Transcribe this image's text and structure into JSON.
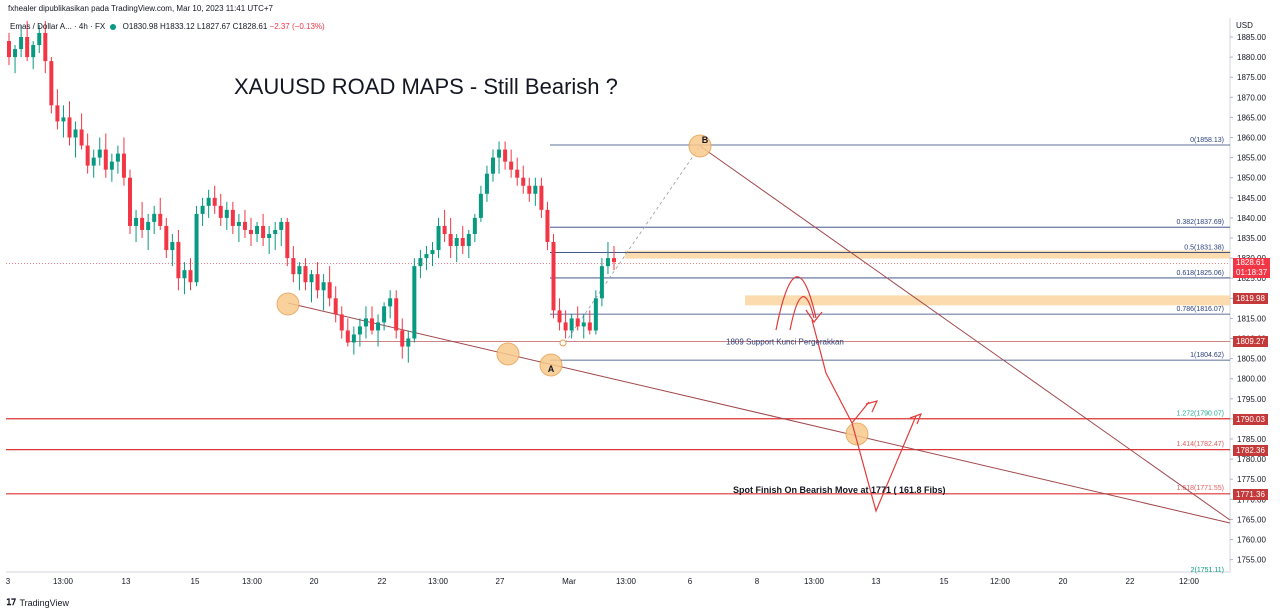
{
  "header": {
    "publisher_line": "fxhealer dipublikasikan pada TradingView.com, Mar 10, 2023 11:41 UTC+7",
    "symbol": "Emas / Dollar A...",
    "timeframe": "4h",
    "exchange": "FX",
    "ohlc": {
      "O": "O1830.98",
      "H": "H1833.12",
      "L": "L1827.67",
      "C": "C1828.61",
      "change": "−2.37 (−0.13%)"
    },
    "title": "XAUUSD ROAD MAPS - Still Bearish ?",
    "currency": "USD"
  },
  "footer": {
    "brand": "TradingView"
  },
  "colors": {
    "up": "#089981",
    "down": "#f23645",
    "fib": "#2a3f7a",
    "trendline": "#a0484b",
    "support_line": "#e06060",
    "zone": "#fbd6a0",
    "circle_fill": "#f9c98c",
    "price_badge": "#f23645",
    "level_badge": "#c43a3a"
  },
  "chart_data": {
    "type": "candlestick",
    "y_axis": {
      "ticks": [
        1885,
        1880,
        1875,
        1870,
        1865,
        1860,
        1855,
        1850,
        1845,
        1840,
        1835,
        1830,
        1825,
        1820,
        1815,
        1810,
        1805,
        1800,
        1795,
        1790,
        1785,
        1780,
        1775,
        1770,
        1765,
        1760,
        1755
      ],
      "tick_labels": [
        "1885.00",
        "1880.00",
        "1875.00",
        "1870.00",
        "1865.00",
        "1860.00",
        "1855.00",
        "1850.00",
        "1845.00",
        "1840.00",
        "1835.00",
        "1830.00",
        "1825.00",
        "1820.00",
        "1815.00",
        "1810.00",
        "1805.00",
        "1800.00",
        "1795.00",
        "1790.00",
        "1785.00",
        "1780.00",
        "1775.00",
        "1770.00",
        "1765.00",
        "1760.00",
        "1755.00"
      ],
      "range": [
        1752,
        1889
      ]
    },
    "x_axis": {
      "tick_labels": [
        "3",
        "13:00",
        "13",
        "15",
        "13:00",
        "20",
        "22",
        "13:00",
        "27",
        "Mar",
        "13:00",
        "6",
        "8",
        "13:00",
        "13",
        "15",
        "12:00",
        "20",
        "22",
        "12:00"
      ]
    },
    "candles": [
      [
        1884,
        1886,
        1878,
        1880
      ],
      [
        1880,
        1883,
        1876,
        1882
      ],
      [
        1882,
        1888,
        1880,
        1885
      ],
      [
        1885,
        1889,
        1879,
        1880
      ],
      [
        1880,
        1884,
        1877,
        1883
      ],
      [
        1883,
        1888,
        1881,
        1886
      ],
      [
        1886,
        1889,
        1876,
        1879
      ],
      [
        1879,
        1880,
        1866,
        1868
      ],
      [
        1868,
        1872,
        1862,
        1864
      ],
      [
        1864,
        1868,
        1860,
        1865
      ],
      [
        1865,
        1869,
        1858,
        1860
      ],
      [
        1860,
        1864,
        1855,
        1862
      ],
      [
        1862,
        1866,
        1857,
        1858
      ],
      [
        1858,
        1861,
        1851,
        1853
      ],
      [
        1853,
        1857,
        1850,
        1855
      ],
      [
        1855,
        1860,
        1853,
        1857
      ],
      [
        1857,
        1861,
        1850,
        1852
      ],
      [
        1852,
        1856,
        1849,
        1854
      ],
      [
        1854,
        1858,
        1851,
        1856
      ],
      [
        1856,
        1860,
        1848,
        1850
      ],
      [
        1850,
        1852,
        1836,
        1838
      ],
      [
        1838,
        1842,
        1834,
        1840
      ],
      [
        1840,
        1844,
        1835,
        1837
      ],
      [
        1837,
        1841,
        1832,
        1839
      ],
      [
        1839,
        1843,
        1836,
        1841
      ],
      [
        1841,
        1845,
        1837,
        1838
      ],
      [
        1838,
        1840,
        1830,
        1832
      ],
      [
        1832,
        1836,
        1828,
        1834
      ],
      [
        1834,
        1837,
        1822,
        1825
      ],
      [
        1825,
        1829,
        1821,
        1827
      ],
      [
        1827,
        1830,
        1822,
        1824
      ],
      [
        1824,
        1843,
        1823,
        1841
      ],
      [
        1841,
        1845,
        1838,
        1843
      ],
      [
        1843,
        1847,
        1840,
        1845
      ],
      [
        1845,
        1848,
        1841,
        1843
      ],
      [
        1843,
        1846,
        1838,
        1840
      ],
      [
        1840,
        1844,
        1837,
        1842
      ],
      [
        1842,
        1844,
        1836,
        1838
      ],
      [
        1838,
        1841,
        1834,
        1839
      ],
      [
        1839,
        1842,
        1835,
        1837
      ],
      [
        1837,
        1840,
        1833,
        1836
      ],
      [
        1836,
        1839,
        1834,
        1838
      ],
      [
        1838,
        1841,
        1833,
        1835
      ],
      [
        1835,
        1838,
        1831,
        1836
      ],
      [
        1836,
        1839,
        1832,
        1837
      ],
      [
        1837,
        1840,
        1833,
        1839
      ],
      [
        1839,
        1840,
        1828,
        1830
      ],
      [
        1830,
        1833,
        1824,
        1826
      ],
      [
        1826,
        1829,
        1822,
        1828
      ],
      [
        1828,
        1830,
        1822,
        1824
      ],
      [
        1824,
        1827,
        1819,
        1826
      ],
      [
        1826,
        1829,
        1820,
        1822
      ],
      [
        1822,
        1826,
        1817,
        1824
      ],
      [
        1824,
        1828,
        1818,
        1820
      ],
      [
        1820,
        1823,
        1814,
        1816
      ],
      [
        1816,
        1818,
        1810,
        1812
      ],
      [
        1812,
        1815,
        1808,
        1809
      ],
      [
        1809,
        1813,
        1806,
        1811
      ],
      [
        1811,
        1815,
        1808,
        1813
      ],
      [
        1813,
        1818,
        1810,
        1815
      ],
      [
        1815,
        1818,
        1811,
        1812
      ],
      [
        1812,
        1816,
        1808,
        1814
      ],
      [
        1814,
        1819,
        1812,
        1818
      ],
      [
        1818,
        1822,
        1815,
        1820
      ],
      [
        1820,
        1822,
        1810,
        1812
      ],
      [
        1812,
        1815,
        1805,
        1808
      ],
      [
        1808,
        1812,
        1804,
        1810
      ],
      [
        1810,
        1830,
        1809,
        1828
      ],
      [
        1828,
        1832,
        1825,
        1830
      ],
      [
        1830,
        1833,
        1827,
        1831
      ],
      [
        1831,
        1834,
        1828,
        1832
      ],
      [
        1832,
        1840,
        1830,
        1838
      ],
      [
        1838,
        1842,
        1834,
        1836
      ],
      [
        1836,
        1840,
        1830,
        1833
      ],
      [
        1833,
        1836,
        1829,
        1835
      ],
      [
        1835,
        1838,
        1831,
        1833
      ],
      [
        1833,
        1837,
        1830,
        1836
      ],
      [
        1836,
        1841,
        1834,
        1840
      ],
      [
        1840,
        1848,
        1839,
        1846
      ],
      [
        1846,
        1853,
        1844,
        1851
      ],
      [
        1851,
        1857,
        1849,
        1855
      ],
      [
        1855,
        1859,
        1851,
        1857
      ],
      [
        1857,
        1859,
        1852,
        1854
      ],
      [
        1854,
        1857,
        1850,
        1852
      ],
      [
        1852,
        1855,
        1848,
        1850
      ],
      [
        1850,
        1853,
        1846,
        1848
      ],
      [
        1848,
        1850,
        1844,
        1846
      ],
      [
        1846,
        1850,
        1843,
        1848
      ],
      [
        1848,
        1850,
        1840,
        1842
      ],
      [
        1842,
        1844,
        1832,
        1834
      ],
      [
        1834,
        1836,
        1815,
        1817
      ],
      [
        1817,
        1820,
        1812,
        1814
      ],
      [
        1814,
        1817,
        1810,
        1812
      ],
      [
        1812,
        1816,
        1810,
        1815
      ],
      [
        1815,
        1818,
        1812,
        1813
      ],
      [
        1813,
        1816,
        1810,
        1814
      ],
      [
        1814,
        1817,
        1811,
        1812
      ],
      [
        1812,
        1822,
        1811,
        1820
      ],
      [
        1820,
        1830,
        1818,
        1828
      ],
      [
        1828,
        1834,
        1826,
        1830
      ],
      [
        1830,
        1833,
        1827,
        1829
      ]
    ],
    "fib_levels": [
      {
        "label": "0(1858.13)",
        "value": 1858.13
      },
      {
        "label": "0.382(1837.69)",
        "value": 1837.69
      },
      {
        "label": "0.5(1831.38)",
        "value": 1831.38
      },
      {
        "label": "0.618(1825.06)",
        "value": 1825.06
      },
      {
        "label": "0.786(1816.07)",
        "value": 1816.07
      },
      {
        "label": "1(1804.62)",
        "value": 1804.62
      },
      {
        "label": "1.272(1790.07)",
        "value": 1790.07
      },
      {
        "label": "1.414(1782.47)",
        "value": 1782.47
      },
      {
        "label": "1.618(1771.55)",
        "value": 1771.55
      },
      {
        "label": "2(1751.11)",
        "value": 1751.11
      }
    ],
    "price_labels": [
      {
        "label": "1828.61",
        "sub": "01:18:37",
        "value": 1828.61,
        "kind": "current"
      },
      {
        "label": "1819.98",
        "value": 1819.98,
        "kind": "level"
      },
      {
        "label": "1809.27",
        "value": 1809.27,
        "kind": "level"
      },
      {
        "label": "1790.03",
        "value": 1790.03,
        "kind": "level"
      },
      {
        "label": "1782.36",
        "value": 1782.36,
        "kind": "level"
      },
      {
        "label": "1771.36",
        "value": 1771.36,
        "kind": "level"
      }
    ],
    "annotations": {
      "support_text": "1809 Support Kunci Pergerakkan",
      "finish_text": "Spot Finish On Bearish Move at 1771 ( 161.8 Fibs)",
      "point_a": "A",
      "point_b": "B"
    }
  }
}
